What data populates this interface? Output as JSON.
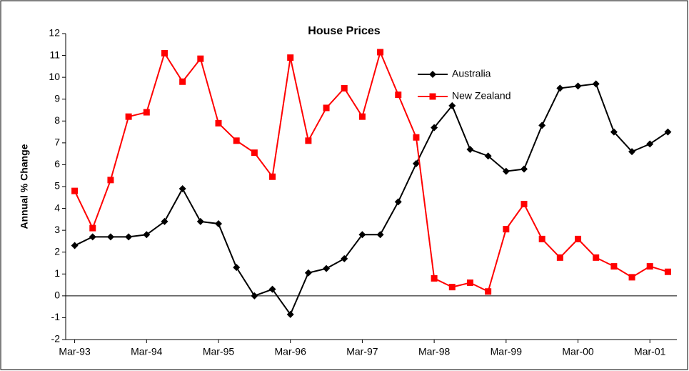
{
  "chart_data": {
    "type": "line",
    "title": "House Prices",
    "y_label": "Annual % Change",
    "categories": [
      "Mar-93",
      null,
      null,
      null,
      "Mar-94",
      null,
      null,
      null,
      "Mar-95",
      null,
      null,
      null,
      "Mar-96",
      null,
      null,
      null,
      "Mar-97",
      null,
      null,
      null,
      "Mar-98",
      null,
      null,
      null,
      "Mar-99",
      null,
      null,
      null,
      "Mar-00",
      null,
      null,
      null,
      "Mar-01",
      null
    ],
    "series": [
      {
        "name": "Australia",
        "color": "#000000",
        "marker": "diamond",
        "values": [
          2.3,
          2.7,
          2.7,
          2.7,
          2.8,
          3.4,
          4.9,
          3.4,
          3.3,
          1.3,
          0,
          0.3,
          -0.85,
          1.05,
          1.25,
          1.7,
          2.8,
          2.8,
          4.3,
          6.05,
          7.7,
          8.7,
          6.7,
          6.4,
          5.7,
          5.8,
          7.8,
          9.5,
          9.6,
          9.7,
          7.5,
          6.6,
          6.95,
          7.5
        ]
      },
      {
        "name": "New Zealand",
        "color": "#ff0000",
        "marker": "square",
        "values": [
          4.8,
          3.1,
          5.3,
          8.2,
          8.4,
          11.1,
          9.8,
          10.85,
          7.9,
          7.1,
          6.55,
          5.45,
          10.9,
          7.1,
          8.6,
          9.5,
          8.2,
          11.15,
          9.2,
          7.25,
          0.8,
          0.4,
          0.6,
          0.2,
          3.05,
          4.2,
          2.6,
          1.75,
          2.6,
          1.75,
          1.35,
          0.85,
          1.35,
          1.1
        ]
      }
    ],
    "ylim": [
      -2,
      12
    ],
    "yticks": [
      -2,
      -1,
      0,
      1,
      2,
      3,
      4,
      5,
      6,
      7,
      8,
      9,
      10,
      11,
      12
    ],
    "zero_line": true,
    "legend": "upper right"
  }
}
